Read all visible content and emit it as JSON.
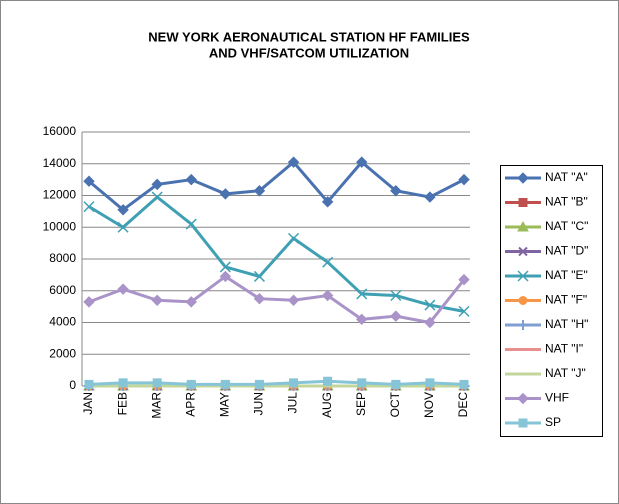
{
  "chart_data": {
    "type": "line",
    "title": [
      "NEW YORK AERONAUTICAL  STATION HF FAMILIES",
      "AND VHF/SATCOM UTILIZATION"
    ],
    "categories": [
      "JAN",
      "FEB",
      "MAR",
      "APR",
      "MAY",
      "JUN",
      "JUL",
      "AUG",
      "SEP",
      "OCT",
      "NOV",
      "DEC"
    ],
    "ylim": [
      0,
      16000
    ],
    "yticks": [
      0,
      2000,
      4000,
      6000,
      8000,
      10000,
      12000,
      14000,
      16000
    ],
    "grid": true,
    "legend": "right",
    "series": [
      {
        "name": "NAT \"A\"",
        "color": "#4a72b0",
        "marker": "diamond",
        "values": [
          12900,
          11100,
          12700,
          13000,
          12100,
          12300,
          14100,
          11600,
          14100,
          12300,
          11900,
          13000
        ]
      },
      {
        "name": "NAT \"B\"",
        "color": "#c0504d",
        "marker": "square",
        "values": [
          0,
          0,
          0,
          0,
          0,
          0,
          0,
          0,
          0,
          0,
          0,
          0
        ]
      },
      {
        "name": "NAT \"C\"",
        "color": "#9bbb59",
        "marker": "triangle",
        "values": [
          0,
          0,
          0,
          0,
          0,
          0,
          0,
          0,
          0,
          0,
          0,
          0
        ]
      },
      {
        "name": "NAT \"D\"",
        "color": "#8064a2",
        "marker": "x",
        "values": [
          0,
          0,
          0,
          0,
          0,
          0,
          0,
          0,
          0,
          0,
          0,
          0
        ]
      },
      {
        "name": "NAT \"E\"",
        "color": "#3fa0b4",
        "marker": "star",
        "values": [
          11300,
          10000,
          11900,
          10200,
          7500,
          6900,
          9300,
          7800,
          5800,
          5700,
          5100,
          4700
        ]
      },
      {
        "name": "NAT \"F\"",
        "color": "#f79646",
        "marker": "circle",
        "values": [
          0,
          0,
          0,
          0,
          0,
          0,
          0,
          0,
          0,
          0,
          0,
          0
        ]
      },
      {
        "name": "NAT \"H\"",
        "color": "#7f9fd0",
        "marker": "plus",
        "values": [
          0,
          0,
          0,
          0,
          0,
          0,
          0,
          0,
          0,
          0,
          0,
          0
        ]
      },
      {
        "name": "NAT \"I\"",
        "color": "#e8908f",
        "marker": "dash",
        "values": [
          0,
          0,
          0,
          0,
          0,
          0,
          0,
          0,
          0,
          0,
          0,
          0
        ]
      },
      {
        "name": "NAT \"J\"",
        "color": "#c3d69b",
        "marker": "dash",
        "values": [
          0,
          0,
          0,
          0,
          0,
          0,
          0,
          0,
          0,
          0,
          0,
          0
        ]
      },
      {
        "name": "VHF",
        "color": "#a993c8",
        "marker": "diamond",
        "values": [
          5300,
          6100,
          5400,
          5300,
          6900,
          5500,
          5400,
          5700,
          4200,
          4400,
          4000,
          6700
        ]
      },
      {
        "name": "SP",
        "color": "#86c5d8",
        "marker": "square",
        "values": [
          100,
          200,
          200,
          100,
          100,
          100,
          200,
          300,
          200,
          100,
          200,
          100
        ]
      }
    ]
  }
}
